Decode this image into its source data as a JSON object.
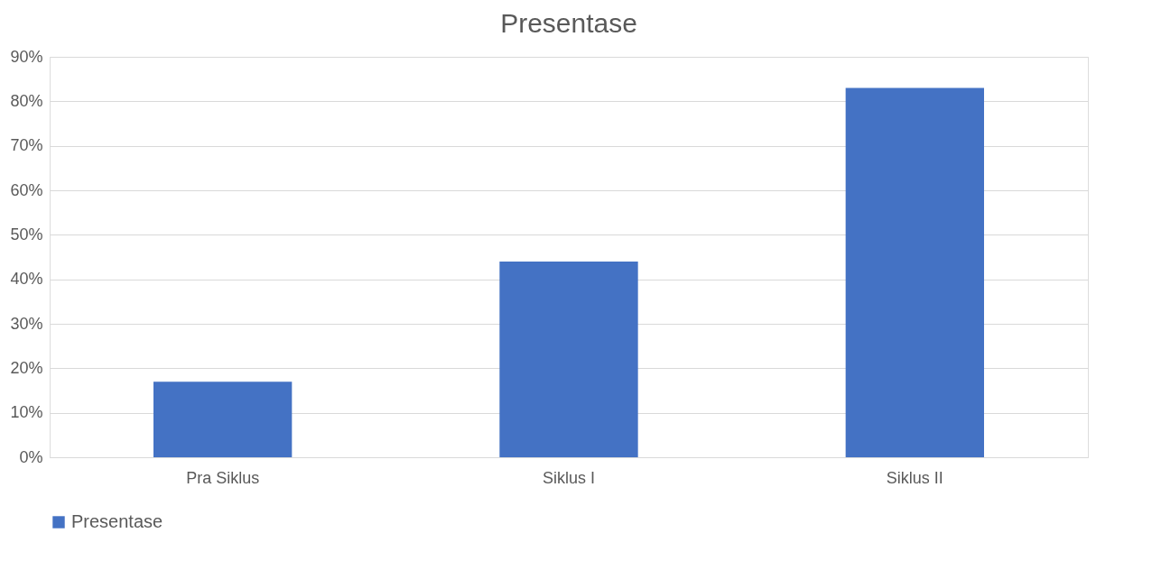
{
  "chart_data": {
    "type": "bar",
    "title": "Presentase",
    "categories": [
      "Pra Siklus",
      "Siklus I",
      "Siklus II"
    ],
    "series": [
      {
        "name": "Presentase",
        "color": "#4472c4",
        "values": [
          17,
          44,
          83
        ]
      }
    ],
    "ylim": [
      0,
      90
    ],
    "yticks": [
      {
        "value": 0,
        "label": "0%"
      },
      {
        "value": 10,
        "label": "10%"
      },
      {
        "value": 20,
        "label": "20%"
      },
      {
        "value": 30,
        "label": "30%"
      },
      {
        "value": 40,
        "label": "40%"
      },
      {
        "value": 50,
        "label": "50%"
      },
      {
        "value": 60,
        "label": "60%"
      },
      {
        "value": 70,
        "label": "70%"
      },
      {
        "value": 80,
        "label": "80%"
      },
      {
        "value": 90,
        "label": "90%"
      }
    ],
    "grid": "y",
    "legend": "bottom"
  }
}
